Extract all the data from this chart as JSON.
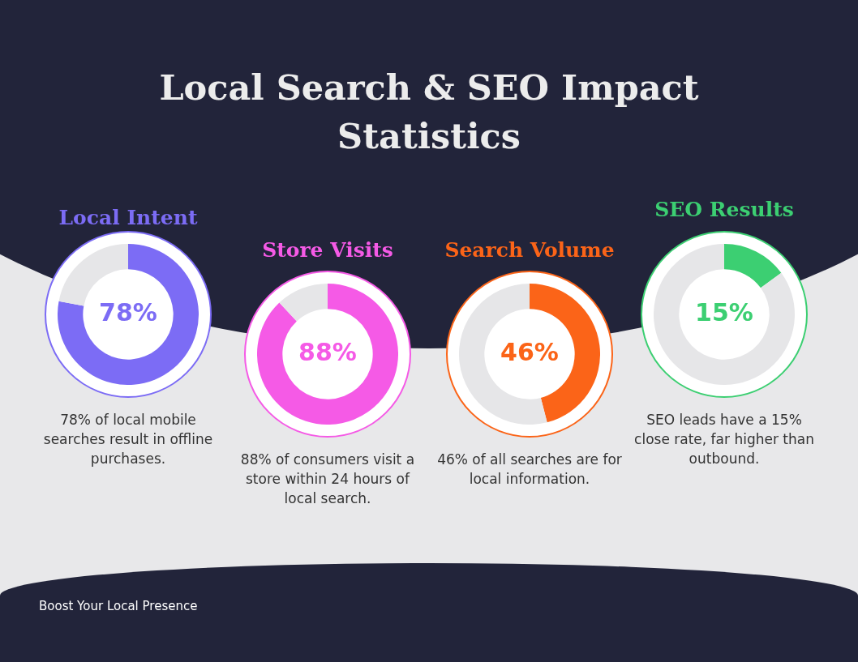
{
  "chart_data": [
    {
      "type": "other",
      "title": "Local Search & SEO Impact Statistics"
    },
    {
      "type": "donut",
      "title": "Local Intent",
      "categories": [
        null,
        null
      ],
      "values": [
        78,
        22
      ],
      "colors": [
        "#7c6cf5",
        "#e6e6e8"
      ],
      "value_labels": [
        "78%",
        null
      ],
      "annotations": [
        "78% of local mobile searches result in offline purchases."
      ]
    },
    {
      "type": "donut",
      "title": "Store Visits",
      "categories": [
        null,
        null
      ],
      "values": [
        88,
        12
      ],
      "colors": [
        "#f55ae6",
        "#e6e6e8"
      ],
      "value_labels": [
        "88%",
        null
      ],
      "annotations": [
        "88% of consumers visit a store within 24 hours of local search."
      ]
    },
    {
      "type": "donut",
      "title": "Search Volume",
      "categories": [
        null,
        null
      ],
      "values": [
        46,
        54
      ],
      "colors": [
        "#fb6418",
        "#e6e6e8"
      ],
      "value_labels": [
        "46%",
        null
      ],
      "annotations": [
        "46% of all searches are for local information."
      ]
    },
    {
      "type": "donut",
      "title": "SEO Results",
      "categories": [
        null,
        null
      ],
      "values": [
        15,
        85
      ],
      "colors": [
        "#3ccf72",
        "#e6e6e8"
      ],
      "value_labels": [
        "15%",
        null
      ],
      "annotations": [
        "SEO leads have a 15% close rate, far higher than outbound."
      ]
    },
    {
      "type": "other",
      "annotations": [
        "Boost Your Local Presence"
      ]
    }
  ]
}
